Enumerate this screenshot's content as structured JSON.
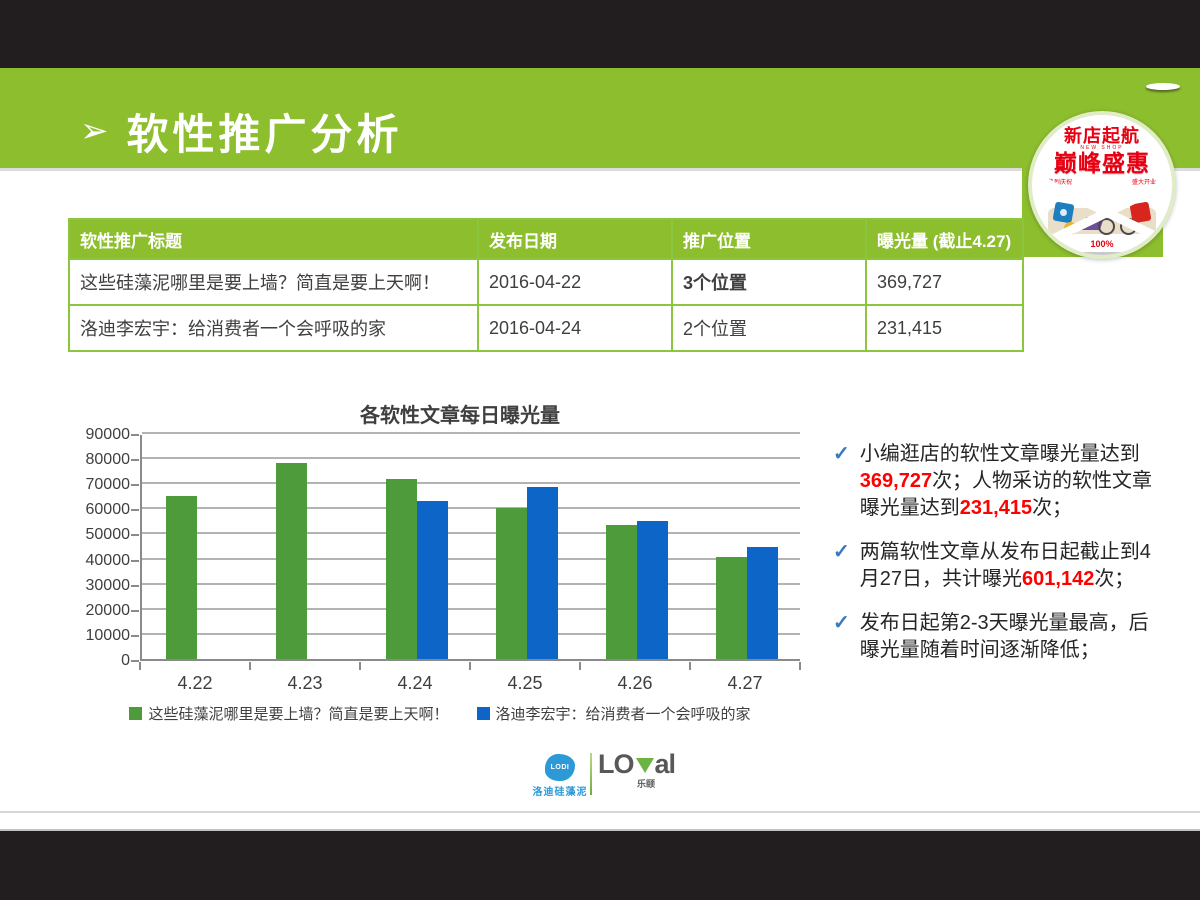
{
  "title_bar": {
    "arrow": "➢",
    "title": "软性推广分析"
  },
  "badge": {
    "line1": "新店起航",
    "line1_sub": "NEW SHOP",
    "line2": "巅峰盛惠",
    "line3_left": "热烈庆祝",
    "line3_right": "盛大开业",
    "percent": "100%"
  },
  "table": {
    "headers": [
      "软性推广标题",
      "发布日期",
      "推广位置",
      "曝光量 (截止4.27)"
    ],
    "rows": [
      [
        "这些硅藻泥哪里是要上墙？简直是要上天啊！",
        "2016-04-22",
        "3个位置",
        "369,727"
      ],
      [
        "洛迪李宏宇：给消费者一个会呼吸的家",
        "2016-04-24",
        "2个位置",
        "231,415"
      ]
    ]
  },
  "chart_data": {
    "type": "bar",
    "title": "各软性文章每日曝光量",
    "categories": [
      "4.22",
      "4.23",
      "4.24",
      "4.25",
      "4.26",
      "4.27"
    ],
    "series": [
      {
        "name": "这些硅藻泥哪里是要上墙？简直是要上天啊！",
        "color": "#4E9B3C",
        "values": [
          65000,
          78000,
          71500,
          60000,
          53500,
          40500
        ]
      },
      {
        "name": "洛迪李宏宇：给消费者一个会呼吸的家",
        "color": "#0D65C8",
        "values": [
          null,
          null,
          63000,
          68500,
          55000,
          44500
        ]
      }
    ],
    "xlabel": "",
    "ylabel": "",
    "ylim": [
      0,
      90000
    ],
    "ytick_step": 10000,
    "grid": true,
    "legend_position": "bottom"
  },
  "insights": {
    "check_glyph": "✓",
    "items": [
      [
        {
          "t": "小编逛店的软性文章曝光量达到",
          "red": false
        },
        {
          "t": "369,727",
          "red": true
        },
        {
          "t": "次；人物采访的软性文章曝光量达到",
          "red": false
        },
        {
          "t": "231,415",
          "red": true
        },
        {
          "t": "次；",
          "red": false
        }
      ],
      [
        {
          "t": "两篇软性文章从发布日起截止到4月27日，共计曝光",
          "red": false
        },
        {
          "t": "601,142",
          "red": true
        },
        {
          "t": "次；",
          "red": false
        }
      ],
      [
        {
          "t": "发布日起第2-3天曝光量最高，后曝光量随着时间逐渐降低；",
          "red": false
        }
      ]
    ]
  },
  "footer": {
    "lodi_logo": "LODI",
    "lodi_name": "洛迪硅藻泥",
    "loyal_left": "LO",
    "loyal_right": "al",
    "loyal_name": "乐颐"
  },
  "colors": {
    "band_green": "#8CBE2E",
    "table_border_green": "#8CC63E",
    "bar_green": "#4E9B3C",
    "bar_blue": "#0D65C8",
    "highlight_red": "#FF0000",
    "check_blue": "#3A78C2",
    "badge_red": "#E60012",
    "lodi_blue": "#2D9AD7",
    "loyal_green": "#6CB33F",
    "letterbox_black": "#221E1F"
  }
}
